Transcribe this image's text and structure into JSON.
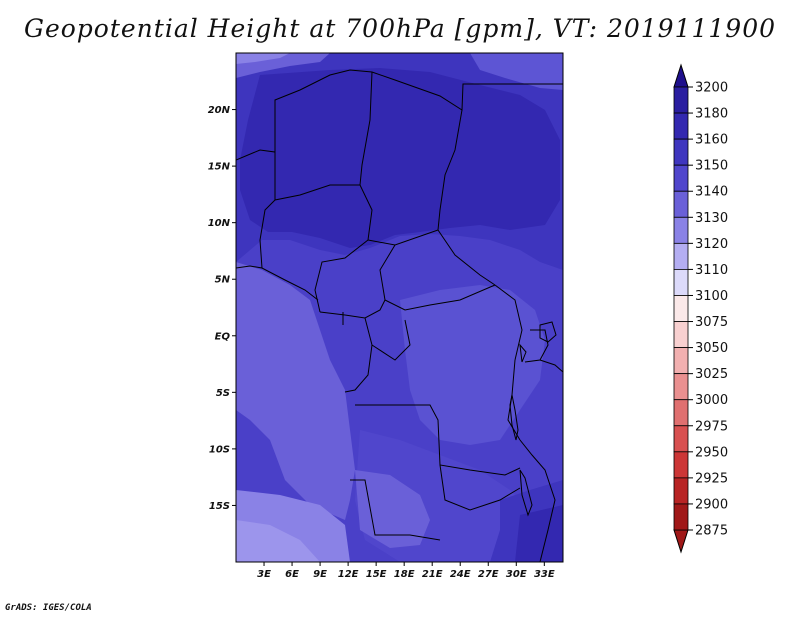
{
  "title": "Geopotential Height at 700hPa [gpm], VT: 2019111900",
  "credit": "GrADS: IGES/COLA",
  "map": {
    "lon_range": [
      0,
      35
    ],
    "lat_range": [
      -20,
      25
    ],
    "lat_ticks": [
      {
        "value": 20,
        "label": "20N"
      },
      {
        "value": 15,
        "label": "15N"
      },
      {
        "value": 10,
        "label": "10N"
      },
      {
        "value": 5,
        "label": "5N"
      },
      {
        "value": 0,
        "label": "EQ"
      },
      {
        "value": -5,
        "label": "5S"
      },
      {
        "value": -10,
        "label": "10S"
      },
      {
        "value": -15,
        "label": "15S"
      }
    ],
    "lon_ticks": [
      {
        "value": 3,
        "label": "3E"
      },
      {
        "value": 6,
        "label": "6E"
      },
      {
        "value": 9,
        "label": "9E"
      },
      {
        "value": 12,
        "label": "12E"
      },
      {
        "value": 15,
        "label": "15E"
      },
      {
        "value": 18,
        "label": "18E"
      },
      {
        "value": 21,
        "label": "21E"
      },
      {
        "value": 24,
        "label": "24E"
      },
      {
        "value": 27,
        "label": "27E"
      },
      {
        "value": 30,
        "label": "30E"
      },
      {
        "value": 33,
        "label": "33E"
      }
    ]
  },
  "colorbar": {
    "levels": [
      {
        "label": "3200",
        "color": "#1e0f8c"
      },
      {
        "label": "3180",
        "color": "#2a1ea0"
      },
      {
        "label": "3160",
        "color": "#3328b0"
      },
      {
        "label": "3150",
        "color": "#3f36bf"
      },
      {
        "label": "3140",
        "color": "#5046cc"
      },
      {
        "label": "3130",
        "color": "#6a60d8"
      },
      {
        "label": "3120",
        "color": "#8a82e6"
      },
      {
        "label": "3110",
        "color": "#b4aef2"
      },
      {
        "label": "3100",
        "color": "#dcdafa"
      },
      {
        "label": "3075",
        "color": "#fbe9e9"
      },
      {
        "label": "3050",
        "color": "#f8d0d0"
      },
      {
        "label": "3025",
        "color": "#f2b0b0"
      },
      {
        "label": "3000",
        "color": "#ea9090"
      },
      {
        "label": "2975",
        "color": "#e07070"
      },
      {
        "label": "2950",
        "color": "#d85050"
      },
      {
        "label": "2925",
        "color": "#cc3636"
      },
      {
        "label": "2900",
        "color": "#b82424"
      },
      {
        "label": "2875",
        "color": "#a01818"
      }
    ]
  }
}
